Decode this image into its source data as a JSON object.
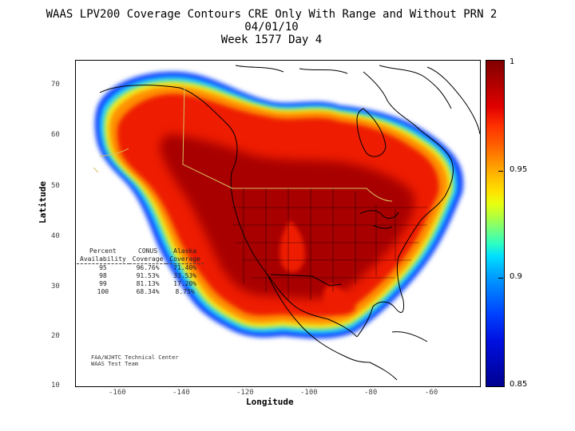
{
  "title": {
    "line1": "WAAS LPV200 Coverage Contours CRE Only With Range and Without PRN 2",
    "line2": "04/01/10",
    "line3": "Week 1577 Day 4"
  },
  "axes": {
    "xlabel": "Longitude",
    "ylabel": "Latitude",
    "xticks": [
      "-160",
      "-140",
      "-120",
      "-100",
      "-80",
      "-60"
    ],
    "yticks": [
      "70",
      "60",
      "50",
      "40",
      "30",
      "20",
      "10"
    ]
  },
  "colorbar": {
    "ticks": [
      "1",
      "0.95",
      "0.9",
      "0.85"
    ],
    "min": 0.85,
    "max": 1
  },
  "table": {
    "headers_row1": [
      "Percent",
      "CONUS",
      "Alaska"
    ],
    "headers_row2": [
      "Availability",
      "Coverage",
      "Coverage"
    ],
    "rows": [
      [
        "95",
        "96.76%",
        "71.40%"
      ],
      [
        "98",
        "91.53%",
        "33.53%"
      ],
      [
        "99",
        "81.13%",
        "17.20%"
      ],
      [
        "100",
        "68.34%",
        "8.75%"
      ]
    ]
  },
  "credit": {
    "line1": "FAA/WJHTC Technical Center",
    "line2": "WAAS Test Team"
  }
}
